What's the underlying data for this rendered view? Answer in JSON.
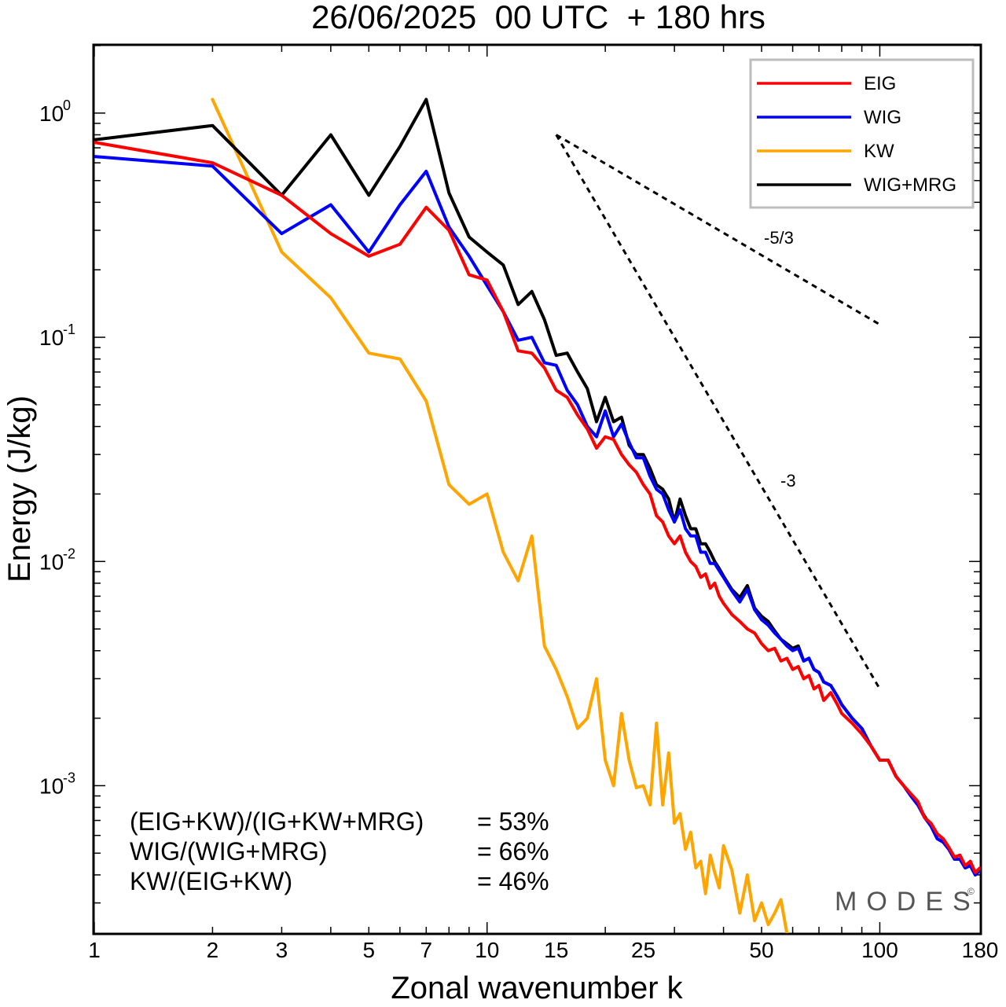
{
  "chart_data": {
    "type": "line",
    "title": "26/06/2025  00 UTC  + 180 hrs",
    "xlabel": "Zonal wavenumber k",
    "ylabel": "Energy (J/kg)",
    "xscale": "log",
    "yscale": "log",
    "xlim": [
      1,
      180
    ],
    "ylim": [
      0.00022,
      2.0
    ],
    "x_ticks": [
      1,
      2,
      3,
      5,
      7,
      10,
      15,
      25,
      50,
      100,
      180
    ],
    "x_tick_labels": [
      "1",
      "2",
      "3",
      "5",
      "7",
      "10",
      "15",
      "25",
      "50",
      "100",
      "180"
    ],
    "y_ticks": [
      {
        "value": 1,
        "base": "10",
        "exp": "0"
      },
      {
        "value": 0.1,
        "base": "10",
        "exp": "-1"
      },
      {
        "value": 0.01,
        "base": "10",
        "exp": "-2"
      },
      {
        "value": 0.001,
        "base": "10",
        "exp": "-3"
      }
    ],
    "grid": false,
    "legend_position": "top-right",
    "series": [
      {
        "name": "EIG",
        "color": "#ff0000",
        "x": [
          1,
          2,
          3,
          4,
          5,
          6,
          7,
          8,
          9,
          10,
          11,
          12,
          13,
          14,
          15,
          16,
          17,
          18,
          19,
          20,
          21,
          22,
          23,
          24,
          25,
          26,
          27,
          28,
          29,
          30,
          31,
          32,
          33,
          34,
          35,
          36,
          37,
          38,
          39,
          40,
          42,
          44,
          46,
          48,
          50,
          52,
          54,
          56,
          58,
          60,
          62,
          64,
          66,
          68,
          70,
          72,
          75,
          78,
          80,
          85,
          90,
          95,
          100,
          105,
          110,
          115,
          120,
          125,
          130,
          135,
          140,
          145,
          150,
          155,
          160,
          165,
          170,
          175,
          180
        ],
        "values": [
          0.74,
          0.6,
          0.43,
          0.29,
          0.23,
          0.26,
          0.38,
          0.3,
          0.19,
          0.18,
          0.13,
          0.087,
          0.085,
          0.073,
          0.058,
          0.054,
          0.045,
          0.039,
          0.032,
          0.036,
          0.035,
          0.03,
          0.027,
          0.025,
          0.022,
          0.02,
          0.016,
          0.015,
          0.013,
          0.012,
          0.013,
          0.011,
          0.01,
          0.0095,
          0.0085,
          0.0088,
          0.0076,
          0.008,
          0.007,
          0.0065,
          0.0058,
          0.0054,
          0.005,
          0.0048,
          0.0043,
          0.004,
          0.0041,
          0.0036,
          0.0037,
          0.0033,
          0.0034,
          0.003,
          0.0031,
          0.0027,
          0.0028,
          0.0024,
          0.0026,
          0.0023,
          0.0021,
          0.0019,
          0.0017,
          0.0015,
          0.0013,
          0.0013,
          0.0011,
          0.001,
          0.00092,
          0.00085,
          0.00072,
          0.00068,
          0.00061,
          0.00058,
          0.00053,
          0.00048,
          0.00049,
          0.00044,
          0.00046,
          0.00041,
          0.00043
        ]
      },
      {
        "name": "WIG",
        "color": "#0000ff",
        "x": [
          1,
          2,
          3,
          4,
          5,
          6,
          7,
          8,
          9,
          10,
          11,
          12,
          13,
          14,
          15,
          16,
          17,
          18,
          19,
          20,
          21,
          22,
          23,
          24,
          25,
          26,
          27,
          28,
          29,
          30,
          31,
          32,
          33,
          34,
          35,
          36,
          37,
          38,
          39,
          40,
          42,
          44,
          46,
          48,
          50,
          52,
          54,
          56,
          58,
          60,
          62,
          64,
          66,
          68,
          70,
          72,
          75,
          78,
          80,
          85,
          90,
          95,
          100,
          105,
          110,
          115,
          120,
          125,
          130,
          135,
          140,
          145,
          150,
          155,
          160,
          165,
          170,
          175,
          180
        ],
        "values": [
          0.64,
          0.58,
          0.29,
          0.39,
          0.24,
          0.39,
          0.55,
          0.31,
          0.23,
          0.17,
          0.13,
          0.097,
          0.1,
          0.077,
          0.075,
          0.058,
          0.05,
          0.04,
          0.036,
          0.047,
          0.036,
          0.041,
          0.034,
          0.029,
          0.029,
          0.024,
          0.021,
          0.02,
          0.017,
          0.015,
          0.017,
          0.014,
          0.013,
          0.013,
          0.011,
          0.011,
          0.0098,
          0.0098,
          0.0091,
          0.0085,
          0.0074,
          0.0066,
          0.0075,
          0.0061,
          0.0055,
          0.0052,
          0.0048,
          0.0045,
          0.0042,
          0.004,
          0.0041,
          0.0036,
          0.0037,
          0.0033,
          0.0032,
          0.0029,
          0.0028,
          0.0025,
          0.0023,
          0.002,
          0.0018,
          0.0015,
          0.0013,
          0.0013,
          0.0011,
          0.001,
          0.0009,
          0.00082,
          0.00072,
          0.00066,
          0.00058,
          0.00056,
          0.00052,
          0.00047,
          0.00047,
          0.00043,
          0.00044,
          0.0004,
          0.00042
        ]
      },
      {
        "name": "KW",
        "color": "#ffa500",
        "x": [
          2,
          3,
          4,
          5,
          6,
          7,
          8,
          9,
          10,
          11,
          12,
          13,
          14,
          15,
          16,
          17,
          18,
          19,
          20,
          21,
          22,
          23,
          24,
          25,
          26,
          27,
          28,
          29,
          30,
          31,
          32,
          33,
          34,
          35,
          36,
          37,
          38,
          39,
          40,
          42,
          44,
          46,
          48,
          50,
          52,
          54,
          56,
          58
        ],
        "values": [
          1.15,
          0.24,
          0.15,
          0.085,
          0.08,
          0.052,
          0.022,
          0.018,
          0.02,
          0.011,
          0.0082,
          0.013,
          0.0042,
          0.0033,
          0.0025,
          0.0018,
          0.002,
          0.003,
          0.0013,
          0.001,
          0.0021,
          0.0013,
          0.00098,
          0.001,
          0.00082,
          0.0019,
          0.00082,
          0.0014,
          0.00068,
          0.00075,
          0.00052,
          0.00062,
          0.00043,
          0.00046,
          0.00033,
          0.00049,
          0.00041,
          0.00035,
          0.00054,
          0.00042,
          0.00027,
          0.0004,
          0.00025,
          0.0003,
          0.00024,
          0.00027,
          0.00031,
          0.00022
        ]
      },
      {
        "name": "WIG+MRG",
        "color": "#000000",
        "x": [
          1,
          2,
          3,
          4,
          5,
          6,
          7,
          8,
          9,
          10,
          11,
          12,
          13,
          14,
          15,
          16,
          17,
          18,
          19,
          20,
          21,
          22,
          23,
          24,
          25,
          26,
          27,
          28,
          29,
          30,
          31,
          32,
          33,
          34,
          35,
          36,
          37,
          38,
          39,
          40,
          42,
          44,
          46,
          48,
          50,
          52,
          54,
          56,
          58,
          60,
          62,
          64,
          66,
          68,
          70,
          72,
          75,
          78,
          80,
          85,
          90,
          95,
          100,
          105,
          110,
          115,
          120,
          125,
          130,
          135,
          140,
          145,
          150,
          155,
          160,
          165,
          170,
          175,
          180
        ],
        "values": [
          0.76,
          0.88,
          0.43,
          0.8,
          0.43,
          0.71,
          1.15,
          0.44,
          0.28,
          0.24,
          0.21,
          0.14,
          0.16,
          0.12,
          0.083,
          0.085,
          0.07,
          0.059,
          0.042,
          0.054,
          0.042,
          0.044,
          0.033,
          0.03,
          0.03,
          0.026,
          0.022,
          0.021,
          0.019,
          0.015,
          0.019,
          0.016,
          0.014,
          0.014,
          0.012,
          0.012,
          0.011,
          0.01,
          0.0093,
          0.0086,
          0.0075,
          0.0069,
          0.0078,
          0.0062,
          0.0057,
          0.0054,
          0.0049,
          0.0045,
          0.0043,
          0.0041,
          0.0042,
          0.0036,
          0.0037,
          0.0033,
          0.0032,
          0.0029,
          0.0028,
          0.0025,
          0.0023,
          0.002,
          0.0018,
          0.0015,
          0.0013,
          0.0013,
          0.0011,
          0.001,
          0.0009,
          0.00082,
          0.00073,
          0.00066,
          0.00058,
          0.00056,
          0.00052,
          0.00047,
          0.00047,
          0.00043,
          0.00044,
          0.0004,
          0.00042
        ]
      }
    ],
    "reference_lines": [
      {
        "label": "-5/3",
        "slope": -1.6667,
        "x": [
          15,
          100
        ],
        "values": [
          0.8,
          0.114
        ]
      },
      {
        "label": "-3",
        "slope": -3,
        "x": [
          15,
          100
        ],
        "values": [
          0.8,
          0.0027
        ]
      }
    ],
    "annotations": [
      {
        "label": "(EIG+KW)/(IG+KW+MRG)",
        "value": "= 53%"
      },
      {
        "label": "WIG/(WIG+MRG)",
        "value": "= 66%"
      },
      {
        "label": "KW/(EIG+KW)",
        "value": "= 46%"
      }
    ],
    "logo": {
      "text": "MODES",
      "mark": "©"
    }
  }
}
